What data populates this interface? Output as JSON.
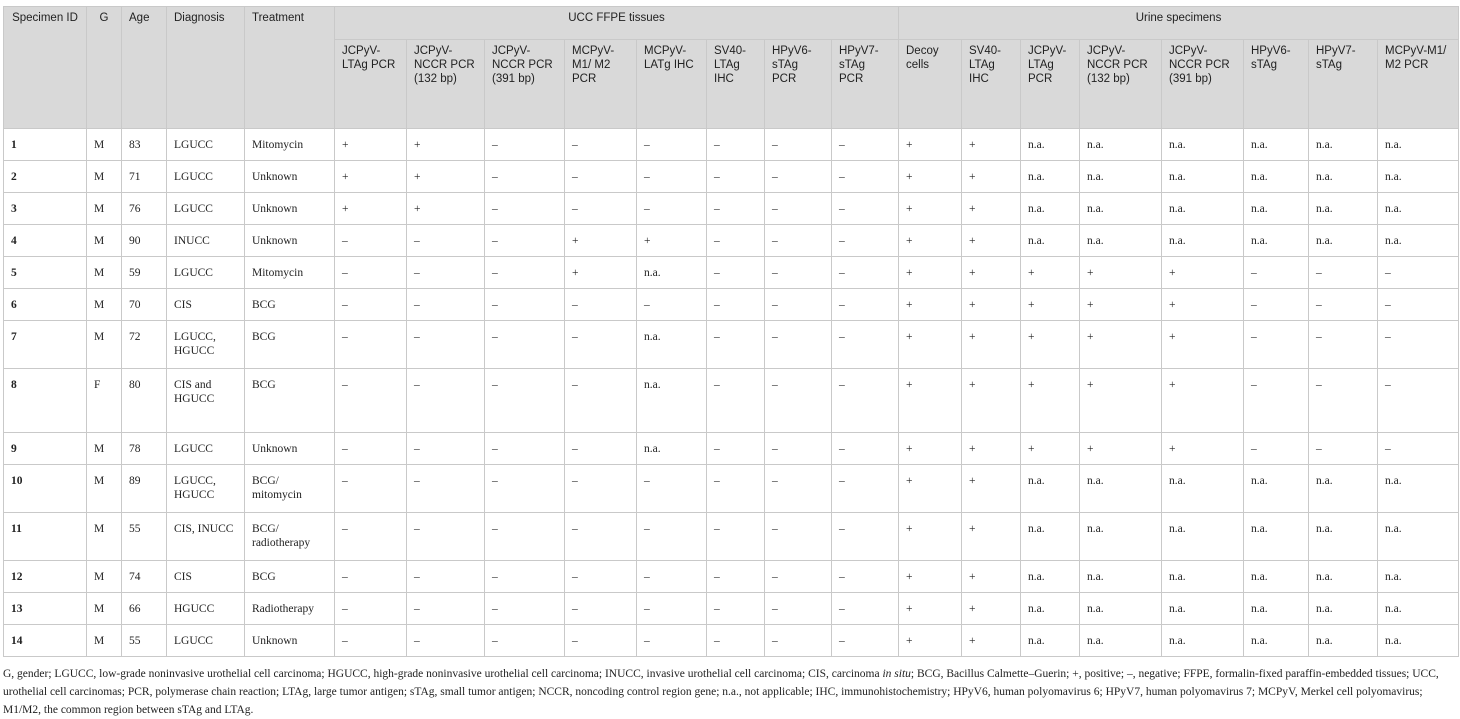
{
  "headers": {
    "specimen_id": "Specimen ID",
    "gender": "G",
    "age": "Age",
    "diagnosis": "Diagnosis",
    "treatment": "Treatment",
    "group_ucc": "UCC FFPE tissues",
    "group_urine": "Urine specimens",
    "ucc_cols": [
      "JCPyV-LTAg PCR",
      "JCPyV-NCCR PCR (132 bp)",
      "JCPyV-NCCR PCR (391 bp)",
      "MCPyV-M1/ M2 PCR",
      "MCPyV-LATg IHC",
      "SV40-LTAg IHC",
      "HPyV6-sTAg PCR",
      "HPyV7-sTAg PCR"
    ],
    "urine_cols": [
      "Decoy cells",
      "SV40-LTAg IHC",
      "JCPyV-LTAg PCR",
      "JCPyV-NCCR PCR (132 bp)",
      "JCPyV-NCCR PCR (391 bp)",
      "HPyV6-sTAg",
      "HPyV7-sTAg",
      "MCPyV-M1/ M2 PCR"
    ]
  },
  "rows": [
    [
      "1",
      "M",
      "83",
      "LGUCC",
      "Mitomycin",
      "+",
      "+",
      "–",
      "–",
      "–",
      "–",
      "–",
      "–",
      "+",
      "+",
      "n.a.",
      "n.a.",
      "n.a.",
      "n.a.",
      "n.a.",
      "n.a."
    ],
    [
      "2",
      "M",
      "71",
      "LGUCC",
      "Unknown",
      "+",
      "+",
      "–",
      "–",
      "–",
      "–",
      "–",
      "–",
      "+",
      "+",
      "n.a.",
      "n.a.",
      "n.a.",
      "n.a.",
      "n.a.",
      "n.a."
    ],
    [
      "3",
      "M",
      "76",
      "LGUCC",
      "Unknown",
      "+",
      "+",
      "–",
      "–",
      "–",
      "–",
      "–",
      "–",
      "+",
      "+",
      "n.a.",
      "n.a.",
      "n.a.",
      "n.a.",
      "n.a.",
      "n.a."
    ],
    [
      "4",
      "M",
      "90",
      "INUCC",
      "Unknown",
      "–",
      "–",
      "–",
      "+",
      "+",
      "–",
      "–",
      "–",
      "+",
      "+",
      "n.a.",
      "n.a.",
      "n.a.",
      "n.a.",
      "n.a.",
      "n.a."
    ],
    [
      "5",
      "M",
      "59",
      "LGUCC",
      "Mitomycin",
      "–",
      "–",
      "–",
      "+",
      "n.a.",
      "–",
      "–",
      "–",
      "+",
      "+",
      "+",
      "+",
      "+",
      "–",
      "–",
      "–"
    ],
    [
      "6",
      "M",
      "70",
      "CIS",
      "BCG",
      "–",
      "–",
      "–",
      "–",
      "–",
      "–",
      "–",
      "–",
      "+",
      "+",
      "+",
      "+",
      "+",
      "–",
      "–",
      "–"
    ],
    [
      "7",
      "M",
      "72",
      "LGUCC, HGUCC",
      "BCG",
      "–",
      "–",
      "–",
      "–",
      "n.a.",
      "–",
      "–",
      "–",
      "+",
      "+",
      "+",
      "+",
      "+",
      "–",
      "–",
      "–"
    ],
    [
      "8",
      "F",
      "80",
      "CIS and HGUCC",
      "BCG",
      "–",
      "–",
      "–",
      "–",
      "n.a.",
      "–",
      "–",
      "–",
      "+",
      "+",
      "+",
      "+",
      "+",
      "–",
      "–",
      "–"
    ],
    [
      "9",
      "M",
      "78",
      "LGUCC",
      "Unknown",
      "–",
      "–",
      "–",
      "–",
      "n.a.",
      "–",
      "–",
      "–",
      "+",
      "+",
      "+",
      "+",
      "+",
      "–",
      "–",
      "–"
    ],
    [
      "10",
      "M",
      "89",
      "LGUCC, HGUCC",
      "BCG/ mitomycin",
      "–",
      "–",
      "–",
      "–",
      "–",
      "–",
      "–",
      "–",
      "+",
      "+",
      "n.a.",
      "n.a.",
      "n.a.",
      "n.a.",
      "n.a.",
      "n.a."
    ],
    [
      "11",
      "M",
      "55",
      "CIS, INUCC",
      "BCG/ radiotherapy",
      "–",
      "–",
      "–",
      "–",
      "–",
      "–",
      "–",
      "–",
      "+",
      "+",
      "n.a.",
      "n.a.",
      "n.a.",
      "n.a.",
      "n.a.",
      "n.a."
    ],
    [
      "12",
      "M",
      "74",
      "CIS",
      "BCG",
      "–",
      "–",
      "–",
      "–",
      "–",
      "–",
      "–",
      "–",
      "+",
      "+",
      "n.a.",
      "n.a.",
      "n.a.",
      "n.a.",
      "n.a.",
      "n.a."
    ],
    [
      "13",
      "M",
      "66",
      "HGUCC",
      "Radiotherapy",
      "–",
      "–",
      "–",
      "–",
      "–",
      "–",
      "–",
      "–",
      "+",
      "+",
      "n.a.",
      "n.a.",
      "n.a.",
      "n.a.",
      "n.a.",
      "n.a."
    ],
    [
      "14",
      "M",
      "55",
      "LGUCC",
      "Unknown",
      "–",
      "–",
      "–",
      "–",
      "–",
      "–",
      "–",
      "–",
      "+",
      "+",
      "n.a.",
      "n.a.",
      "n.a.",
      "n.a.",
      "n.a.",
      "n.a."
    ]
  ],
  "footnote": {
    "before_italic": "G, gender; LGUCC, low-grade noninvasive urothelial cell carcinoma; HGUCC, high-grade noninvasive urothelial cell carcinoma; INUCC, invasive urothelial cell carcinoma; CIS, carcinoma ",
    "italic": "in situ",
    "after_italic": "; BCG, Bacillus Calmette–Guerin; +, positive; –, negative; FFPE, formalin-fixed paraffin-embedded tissues; UCC, urothelial cell carcinomas; PCR, polymerase chain reaction; LTAg, large tumor antigen; sTAg, small tumor antigen; NCCR, noncoding control region gene; n.a., not applicable; IHC, immunohistochemistry; HPyV6, human polyomavirus 6; HPyV7, human polyomavirus 7; MCPyV, Merkel cell polyomavirus; M1/M2, the common region between sTAg and LTAg."
  }
}
